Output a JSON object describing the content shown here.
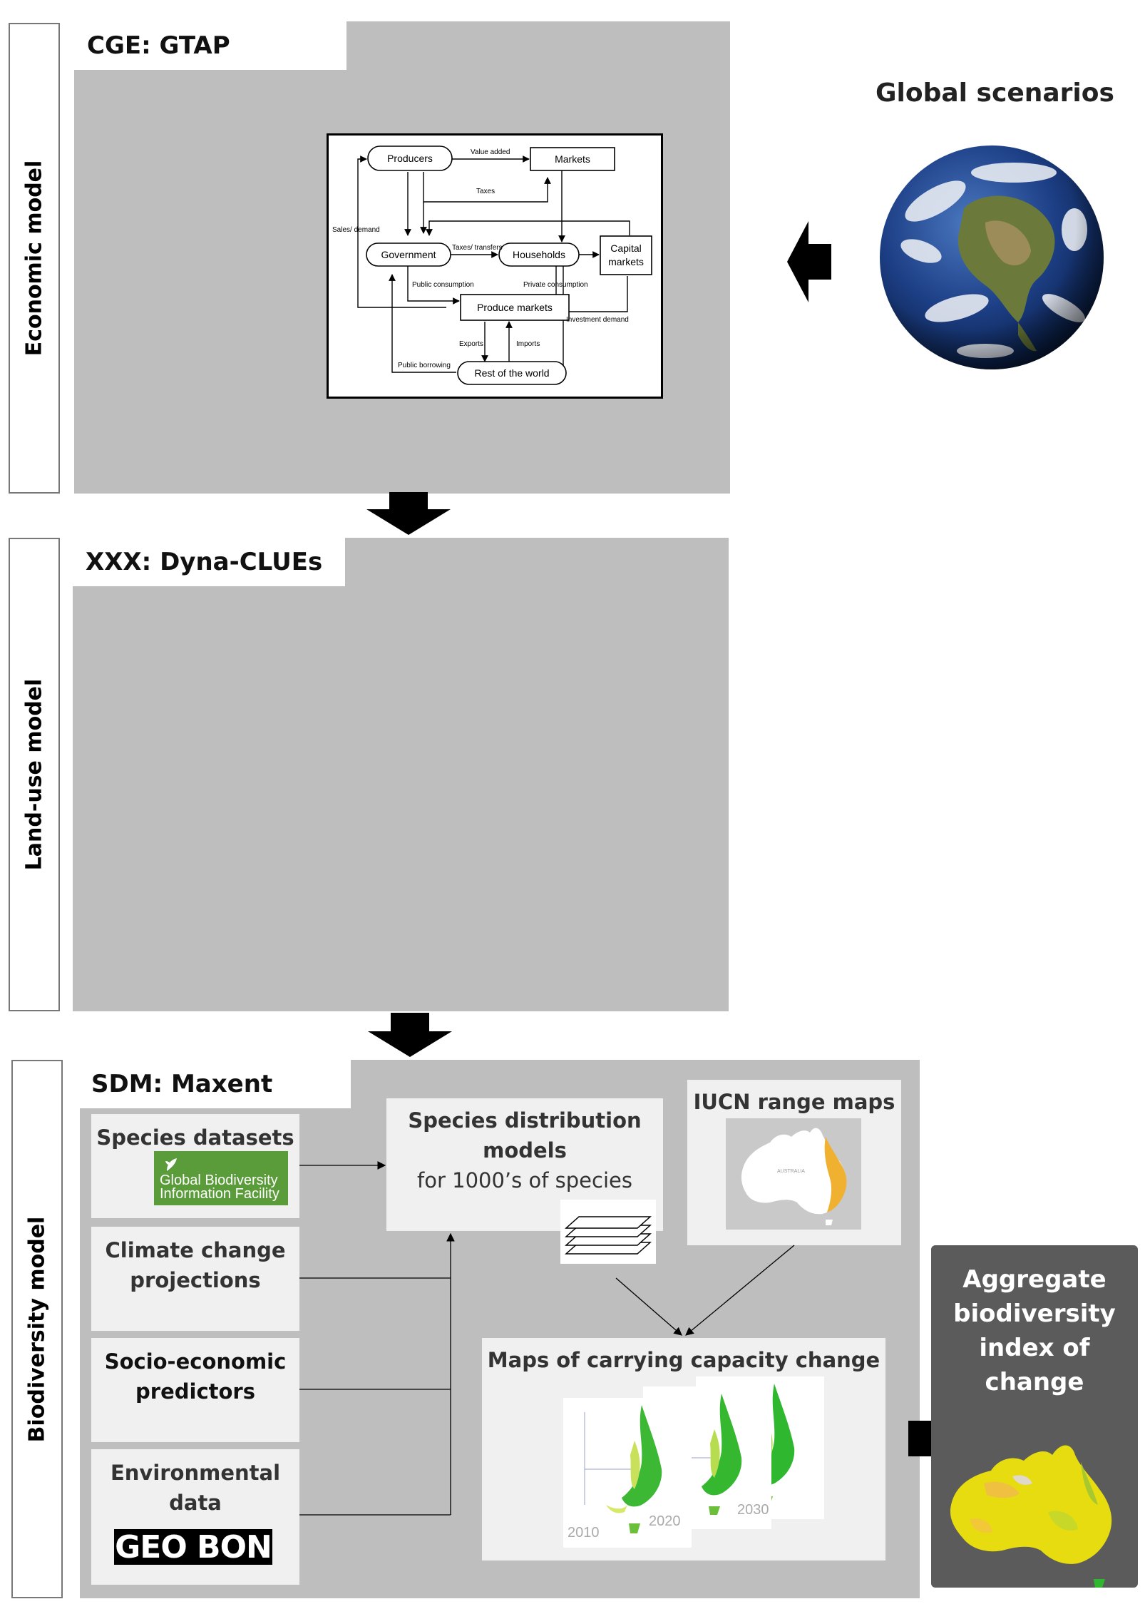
{
  "economic": {
    "side_label": "Economic model",
    "tab": "CGE: GTAP"
  },
  "landuse": {
    "side_label": "Land-use model",
    "tab": "XXX: Dyna-CLUEs"
  },
  "biodiversity": {
    "side_label": "Biodiversity model",
    "tab": "SDM: Maxent"
  },
  "global_scenarios": "Global scenarios",
  "cge": {
    "producers": "Producers",
    "markets": "Markets",
    "government": "Government",
    "households": "Households",
    "capital_1": "Capital",
    "capital_2": "markets",
    "produce_markets": "Produce markets",
    "rest_of_world": "Rest of the world",
    "value_added": "Value added",
    "taxes": "Taxes",
    "sales_demand": "Sales/ demand",
    "taxes_transfers": "Taxes/ transfers",
    "public_consumption": "Public consumption",
    "private_consumption": "Private consumption",
    "investment_demand": "Investment demand",
    "exports": "Exports",
    "imports": "Imports",
    "public_borrowing": "Public borrowing"
  },
  "inputs": {
    "species_datasets": "Species datasets",
    "gbif_1": "Global Biodiversity",
    "gbif_2": "Information Facility",
    "climate_1": "Climate change",
    "climate_2": "projections",
    "socio_1": "Socio-economic",
    "socio_2": "predictors",
    "env_1": "Environmental",
    "env_2": "data",
    "geobon": "GEO BON"
  },
  "sdm": {
    "line1": "Species distribution",
    "line2": "models",
    "line3": "for 1000’s of species"
  },
  "iucn": {
    "title": "IUCN range maps",
    "map_label": "AUSTRALIA"
  },
  "maps": {
    "title": "Maps of carrying capacity change",
    "years": [
      "2010",
      "2020",
      "2030"
    ]
  },
  "aggregate": {
    "l1": "Aggregate",
    "l2": "biodiversity",
    "l3": "index of",
    "l4": "change"
  }
}
